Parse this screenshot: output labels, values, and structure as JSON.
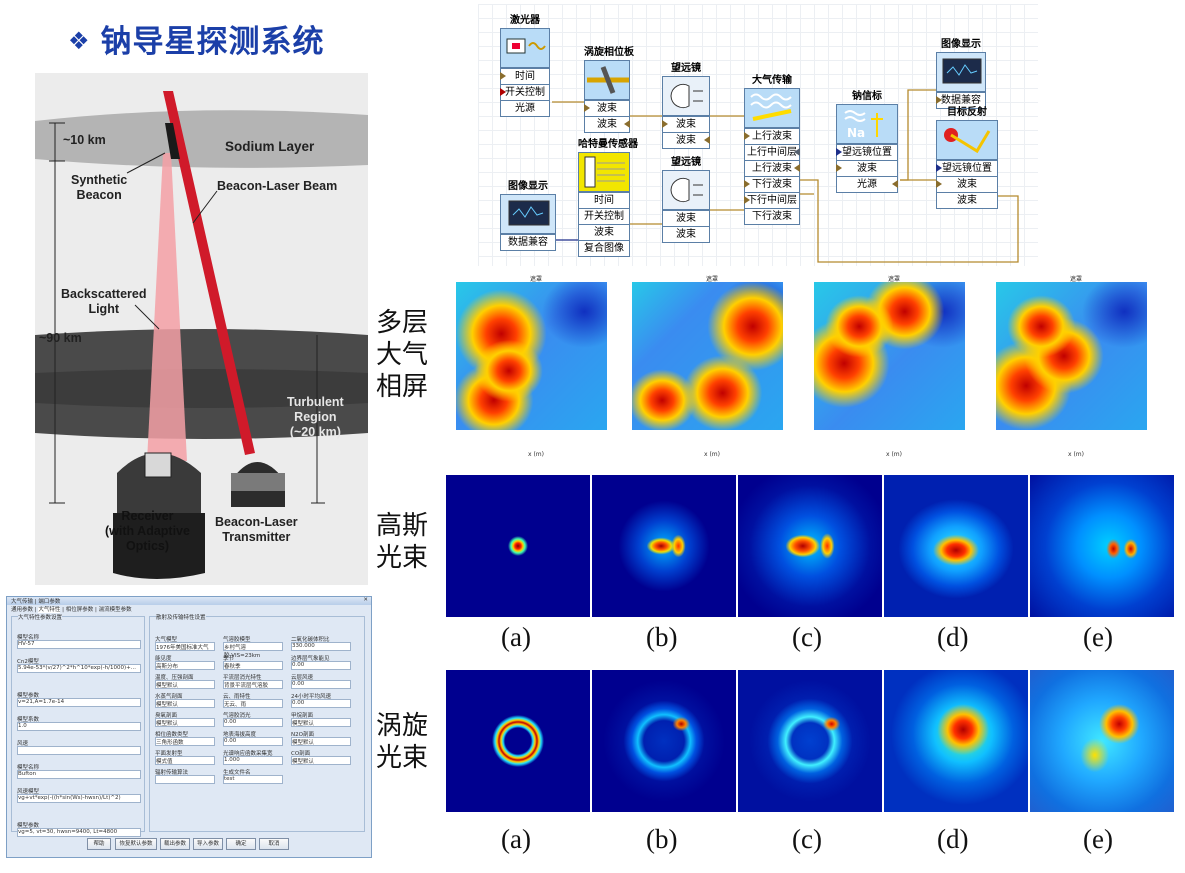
{
  "title": "钠导星探测系统",
  "beacon_figure": {
    "sodium_layer": "Sodium Layer",
    "layer_thickness": "~10 km",
    "altitude": "~90 km",
    "synthetic_beacon": "Synthetic\nBeacon",
    "beacon_laser_beam": "Beacon-Laser Beam",
    "backscattered_light": "Backscattered\nLight",
    "turbulent_region": "Turbulent\nRegion\n(~20 km)",
    "receiver": "Receiver\n(with Adaptive\nOptics)",
    "transmitter": "Beacon-Laser\nTransmitter"
  },
  "flow_diagram": {
    "laser": {
      "title": "激光器",
      "ports": [
        "时间",
        "开关控制",
        "光源"
      ]
    },
    "vortex_plate": {
      "title": "涡旋相位板",
      "ports": [
        "波束",
        "波束"
      ]
    },
    "telescope_top": {
      "title": "望远镜",
      "ports": [
        "波束",
        "波束"
      ]
    },
    "atmosphere": {
      "title": "大气传输",
      "ports": [
        "上行波束",
        "上行中间层",
        "上行波束",
        "下行波束",
        "下行中间层",
        "下行波束"
      ]
    },
    "sodium_beacon": {
      "title": "钠信标",
      "ports": [
        "望远镜位置",
        "波束",
        "光源"
      ]
    },
    "display_top": {
      "title": "图像显示",
      "ports": [
        "数据兼容"
      ]
    },
    "target_reflect": {
      "title": "目标反射",
      "ports": [
        "望远镜位置",
        "波束",
        "波束"
      ]
    },
    "hartmann": {
      "title": "哈特曼传感器",
      "ports": [
        "时间",
        "开关控制",
        "波束",
        "复合图像"
      ]
    },
    "telescope_bottom": {
      "title": "望远镜",
      "ports": [
        "波束",
        "波束"
      ]
    },
    "display_bottom": {
      "title": "图像显示",
      "ports": [
        "数据兼容"
      ]
    }
  },
  "row_labels": {
    "phase_screens": "多层\n大气\n相屏",
    "gaussian": "高斯\n光束",
    "vortex": "涡旋\n光束"
  },
  "phase_screens": [
    {
      "title": "遮罩",
      "xlabel": "x (m)"
    },
    {
      "title": "遮罩",
      "xlabel": "x (m)"
    },
    {
      "title": "遮罩",
      "xlabel": "x (m)"
    },
    {
      "title": "遮罩",
      "xlabel": "x (m)"
    }
  ],
  "captions": [
    "(a)",
    "(b)",
    "(c)",
    "(d)",
    "(e)"
  ],
  "dialog": {
    "title": "大气传输 | 端口参数",
    "tabs": [
      "通用参数",
      "大气特性",
      "相位屏参数",
      "湍流模型参数"
    ],
    "left_group": "大气特性参数设置",
    "right_group": "散射及传输特性设置",
    "fields": [
      {
        "label": "模型名称",
        "value": "HV-57"
      },
      {
        "label": "Cn2模型",
        "value": "5.94e-53*(v/27)^2*h^10*exp(-h/1000)+..."
      },
      {
        "label": "模型参数",
        "value": "v=21,A=1.7e-14"
      },
      {
        "label": "模型系数",
        "value": "1.0"
      },
      {
        "label": "风速",
        "value": ""
      },
      {
        "label": "模型名称",
        "value": "Bufton"
      },
      {
        "label": "风速模型",
        "value": "vg+vt*exp(-((h*sin(Ws)-hwsn)/Lt)^2)"
      },
      {
        "label": "模型参数",
        "value": "vg=5, vt=30, hwsn=9400, Lt=4800"
      }
    ],
    "right_fields": [
      {
        "label": "大气模型",
        "value": "1976年美国标准大气"
      },
      {
        "label": "气溶胶模型",
        "value": "乡村气溶胶,VIS=23km"
      },
      {
        "label": "二氧化碳体积比",
        "value": "330.000"
      },
      {
        "label": "能见度",
        "value": "高斯分布"
      },
      {
        "label": "季节",
        "value": "春秋季"
      },
      {
        "label": "边界层气象能见",
        "value": "0.00"
      },
      {
        "label": "温度、压强剖面",
        "value": "模型默认"
      },
      {
        "label": "平流层消光特性",
        "value": "背景平流层气溶胶"
      },
      {
        "label": "云层风速",
        "value": "0.00"
      },
      {
        "label": "水蒸气剖面",
        "value": "模型默认"
      },
      {
        "label": "云、雨特性",
        "value": "无云、雨"
      },
      {
        "label": "24小时平均风速",
        "value": "0.00"
      },
      {
        "label": "臭氧剖面",
        "value": "模型默认"
      },
      {
        "label": "气溶胶消光",
        "value": "0.00"
      },
      {
        "label": "甲烷剖面",
        "value": "模型默认"
      },
      {
        "label": "相位函数类型",
        "value": "三角形函数"
      },
      {
        "label": "地表海拔高度",
        "value": "0.00"
      },
      {
        "label": "N2O剖面",
        "value": "模型默认"
      },
      {
        "label": "平面发射型",
        "value": "模式值"
      },
      {
        "label": "光谱响应函数采集宽",
        "value": "1.000"
      },
      {
        "label": "CO剖面",
        "value": "模型默认"
      },
      {
        "label": "辐射传输算法",
        "value": ""
      },
      {
        "label": "生成文件名",
        "value": "test"
      }
    ],
    "buttons": [
      "帮助",
      "恢复默认参数",
      "载出参数",
      "导入参数",
      "确定",
      "取消"
    ]
  }
}
